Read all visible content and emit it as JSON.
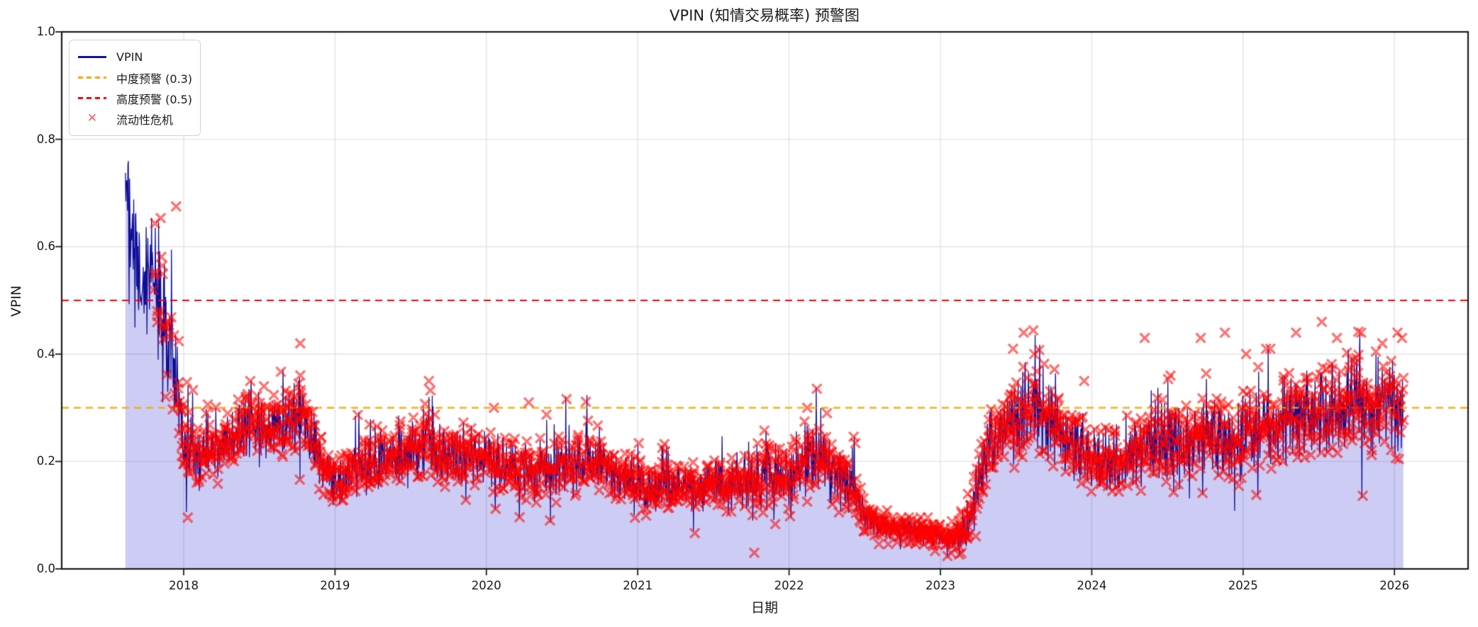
{
  "figure": {
    "title": "VPIN (知情交易概率) 预警图",
    "xlabel": "日期",
    "ylabel": "VPIN"
  },
  "legend": {
    "items": [
      {
        "label": "VPIN",
        "style": "solid-line",
        "color": "#14149b"
      },
      {
        "label": "中度预警 (0.3)",
        "style": "dashed-line",
        "color": "#ffa500"
      },
      {
        "label": "高度预警 (0.5)",
        "style": "dashed-line",
        "color": "#ff0000"
      },
      {
        "label": "流动性危机",
        "style": "x-marker",
        "color": "#f26060"
      }
    ]
  },
  "chart_data": {
    "type": "line",
    "subtype": "line+area+scatter+thresholds",
    "title": "VPIN (知情交易概率) 预警图",
    "xlabel": "日期",
    "ylabel": "VPIN",
    "xlim": [
      2017.19,
      2026.49
    ],
    "ylim": [
      0.0,
      1.0
    ],
    "x_ticks": [
      2018,
      2019,
      2020,
      2021,
      2022,
      2023,
      2024,
      2025,
      2026
    ],
    "x_tick_labels": [
      "2018",
      "2019",
      "2020",
      "2021",
      "2022",
      "2023",
      "2024",
      "2025",
      "2026"
    ],
    "y_ticks": [
      0.0,
      0.2,
      0.4,
      0.6,
      0.8,
      1.0
    ],
    "y_tick_labels": [
      "0.0",
      "0.2",
      "0.4",
      "0.6",
      "0.8",
      "1.0"
    ],
    "grid": true,
    "grid_color": "#e3e3e3",
    "legend_position": "upper left",
    "thresholds": [
      {
        "name": "中度预警",
        "value": 0.3,
        "color": "#ffa500",
        "style": "dashed"
      },
      {
        "name": "高度预警",
        "value": 0.5,
        "color": "#ff0000",
        "style": "dashed"
      }
    ],
    "series": {
      "name": "VPIN",
      "color": "#0e0e96",
      "fill_color": "rgba(0,0,200,0.2)",
      "x_start": 2017.615,
      "x_end": 2026.06,
      "description": "daily VPIN values; control_points are [decimal_year, mean_level, noise_amplitude] read from the plot envelope",
      "control_points": [
        [
          2017.615,
          0.72,
          0.04
        ],
        [
          2017.63,
          0.66,
          0.1
        ],
        [
          2017.65,
          0.62,
          0.13
        ],
        [
          2017.68,
          0.56,
          0.11
        ],
        [
          2017.72,
          0.5,
          0.08
        ],
        [
          2017.76,
          0.54,
          0.09
        ],
        [
          2017.8,
          0.56,
          0.09
        ],
        [
          2017.84,
          0.5,
          0.1
        ],
        [
          2017.88,
          0.44,
          0.11
        ],
        [
          2017.92,
          0.42,
          0.1
        ],
        [
          2017.96,
          0.33,
          0.09
        ],
        [
          2018.0,
          0.24,
          0.06
        ],
        [
          2018.08,
          0.2,
          0.05
        ],
        [
          2018.2,
          0.22,
          0.05
        ],
        [
          2018.33,
          0.25,
          0.05
        ],
        [
          2018.45,
          0.27,
          0.06
        ],
        [
          2018.55,
          0.25,
          0.05
        ],
        [
          2018.65,
          0.27,
          0.06
        ],
        [
          2018.75,
          0.3,
          0.07
        ],
        [
          2018.82,
          0.27,
          0.06
        ],
        [
          2018.92,
          0.19,
          0.05
        ],
        [
          2019.0,
          0.16,
          0.04
        ],
        [
          2019.1,
          0.18,
          0.05
        ],
        [
          2019.25,
          0.2,
          0.05
        ],
        [
          2019.4,
          0.21,
          0.05
        ],
        [
          2019.55,
          0.22,
          0.06
        ],
        [
          2019.62,
          0.25,
          0.07
        ],
        [
          2019.7,
          0.22,
          0.05
        ],
        [
          2019.85,
          0.2,
          0.05
        ],
        [
          2020.0,
          0.21,
          0.05
        ],
        [
          2020.15,
          0.19,
          0.05
        ],
        [
          2020.3,
          0.18,
          0.05
        ],
        [
          2020.5,
          0.19,
          0.05
        ],
        [
          2020.7,
          0.2,
          0.05
        ],
        [
          2020.9,
          0.17,
          0.04
        ],
        [
          2021.1,
          0.15,
          0.04
        ],
        [
          2021.3,
          0.16,
          0.04
        ],
        [
          2021.5,
          0.16,
          0.04
        ],
        [
          2021.7,
          0.16,
          0.05
        ],
        [
          2021.9,
          0.17,
          0.05
        ],
        [
          2022.05,
          0.18,
          0.05
        ],
        [
          2022.15,
          0.21,
          0.06
        ],
        [
          2022.3,
          0.18,
          0.06
        ],
        [
          2022.44,
          0.14,
          0.04
        ],
        [
          2022.52,
          0.09,
          0.025
        ],
        [
          2022.7,
          0.075,
          0.02
        ],
        [
          2022.9,
          0.065,
          0.02
        ],
        [
          2023.05,
          0.06,
          0.018
        ],
        [
          2023.18,
          0.07,
          0.03
        ],
        [
          2023.24,
          0.16,
          0.05
        ],
        [
          2023.32,
          0.22,
          0.06
        ],
        [
          2023.45,
          0.27,
          0.07
        ],
        [
          2023.55,
          0.3,
          0.08
        ],
        [
          2023.65,
          0.3,
          0.08
        ],
        [
          2023.78,
          0.26,
          0.07
        ],
        [
          2023.9,
          0.22,
          0.06
        ],
        [
          2024.05,
          0.2,
          0.06
        ],
        [
          2024.18,
          0.19,
          0.05
        ],
        [
          2024.32,
          0.22,
          0.06
        ],
        [
          2024.45,
          0.24,
          0.07
        ],
        [
          2024.6,
          0.23,
          0.06
        ],
        [
          2024.75,
          0.25,
          0.07
        ],
        [
          2024.9,
          0.24,
          0.07
        ],
        [
          2025.05,
          0.26,
          0.07
        ],
        [
          2025.2,
          0.27,
          0.07
        ],
        [
          2025.35,
          0.28,
          0.08
        ],
        [
          2025.5,
          0.3,
          0.08
        ],
        [
          2025.65,
          0.3,
          0.08
        ],
        [
          2025.8,
          0.3,
          0.08
        ],
        [
          2025.95,
          0.31,
          0.08
        ],
        [
          2026.06,
          0.3,
          0.09
        ]
      ]
    },
    "crisis_markers": {
      "name": "流动性危机",
      "marker": "x",
      "color": "rgba(255,0,0,0.55)",
      "start": 2017.8,
      "end": 2026.06,
      "density": 0.8,
      "sparse_until": 2017.97,
      "sparse_density": 0.45,
      "outliers": [
        [
          2017.95,
          0.675
        ],
        [
          2018.44,
          0.35
        ],
        [
          2018.53,
          0.34
        ],
        [
          2018.77,
          0.42
        ],
        [
          2019.62,
          0.35
        ],
        [
          2020.05,
          0.3
        ],
        [
          2020.28,
          0.31
        ],
        [
          2021.77,
          0.03
        ],
        [
          2022.12,
          0.3
        ],
        [
          2022.25,
          0.29
        ],
        [
          2023.48,
          0.41
        ],
        [
          2023.55,
          0.44
        ],
        [
          2023.62,
          0.4
        ],
        [
          2023.95,
          0.35
        ],
        [
          2024.35,
          0.43
        ],
        [
          2024.52,
          0.36
        ],
        [
          2024.72,
          0.43
        ],
        [
          2024.88,
          0.44
        ],
        [
          2025.02,
          0.4
        ],
        [
          2025.18,
          0.41
        ],
        [
          2025.35,
          0.44
        ],
        [
          2025.52,
          0.46
        ],
        [
          2025.62,
          0.43
        ],
        [
          2025.78,
          0.44
        ],
        [
          2025.92,
          0.42
        ],
        [
          2026.02,
          0.44
        ],
        [
          2026.05,
          0.43
        ]
      ]
    },
    "colors": {
      "line": "#0e0e96",
      "fill": "rgba(0,0,200,0.2)",
      "moderate_threshold": "#ffa500",
      "high_threshold": "#ff0000",
      "crisis_marker": "rgba(255,0,0,0.55)",
      "grid": "#e3e3e3",
      "spine": "#1c1c1c",
      "background": "#ffffff"
    },
    "seed": 20177
  }
}
